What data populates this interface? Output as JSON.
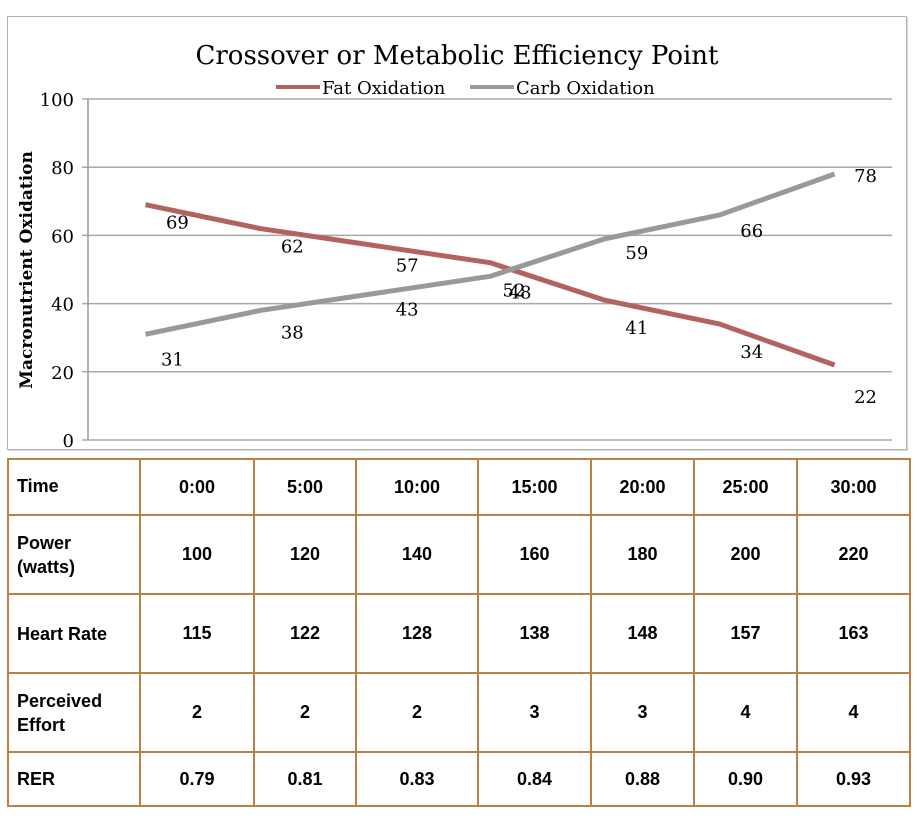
{
  "chart_data": {
    "type": "line",
    "title": "Crossover or Metabolic Efficiency Point",
    "xlabel": "",
    "ylabel": "Macronutrient Oxidation",
    "ylim": [
      0,
      100
    ],
    "yticks": [
      0,
      20,
      40,
      60,
      80,
      100
    ],
    "grid": true,
    "legend_position": "top-center",
    "categories": [
      "0:00",
      "5:00",
      "10:00",
      "15:00",
      "20:00",
      "25:00",
      "30:00"
    ],
    "series": [
      {
        "name": "Fat Oxidation",
        "color": "#b3635f",
        "values": [
          69,
          62,
          57,
          52,
          41,
          34,
          22
        ]
      },
      {
        "name": "Carb Oxidation",
        "color": "#999999",
        "values": [
          31,
          38,
          43,
          48,
          59,
          66,
          78
        ]
      }
    ]
  },
  "table": {
    "rows": [
      {
        "label": [
          "Time"
        ],
        "values": [
          "0:00",
          "5:00",
          "10:00",
          "15:00",
          "20:00",
          "25:00",
          "30:00"
        ]
      },
      {
        "label": [
          "Power",
          "(watts)"
        ],
        "values": [
          "100",
          "120",
          "140",
          "160",
          "180",
          "200",
          "220"
        ]
      },
      {
        "label": [
          "Heart Rate"
        ],
        "values": [
          "115",
          "122",
          "128",
          "138",
          "148",
          "157",
          "163"
        ]
      },
      {
        "label": [
          "Perceived",
          "Effort"
        ],
        "values": [
          "2",
          "2",
          "2",
          "3",
          "3",
          "4",
          "4"
        ]
      },
      {
        "label": [
          "RER"
        ],
        "values": [
          "0.79",
          "0.81",
          "0.83",
          "0.84",
          "0.88",
          "0.90",
          "0.93"
        ]
      }
    ]
  }
}
